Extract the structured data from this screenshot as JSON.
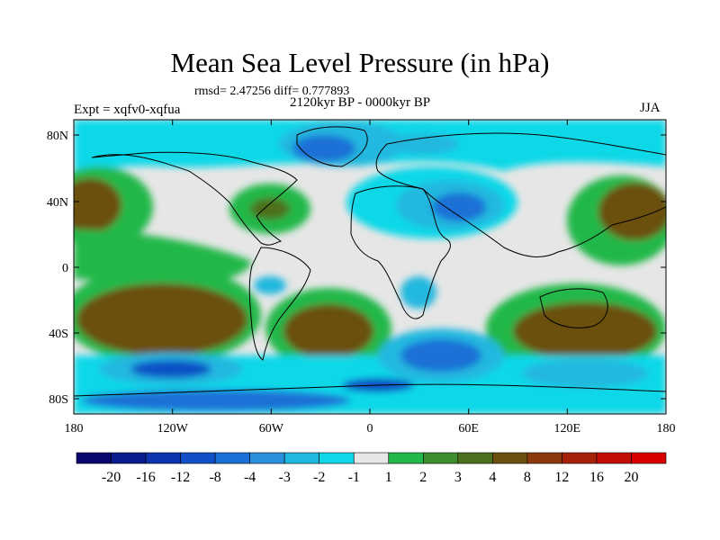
{
  "title": "Mean Sea Level Pressure (in hPa)",
  "stats": "rmsd= 2.47256 diff= 0.777893",
  "subtitle": "2120kyr BP - 0000kyr BP",
  "expt": "Expt = xqfv0-xqfua",
  "season": "JJA",
  "lat_labels": [
    "80N",
    "40N",
    "0",
    "40S",
    "80S"
  ],
  "lon_labels": [
    "180",
    "120W",
    "60W",
    "0",
    "60E",
    "120E",
    "180"
  ],
  "legend": {
    "labels": [
      "-20",
      "-16",
      "-12",
      "-8",
      "-4",
      "-3",
      "-2",
      "-1",
      "1",
      "2",
      "3",
      "4",
      "8",
      "12",
      "16",
      "20"
    ],
    "colors": [
      "#08086e",
      "#0a1d8f",
      "#0d33ad",
      "#1150c6",
      "#1b6fd6",
      "#2b90dd",
      "#21b8df",
      "#11d8e8",
      "#e6e6e6",
      "#22b84a",
      "#3e8e2e",
      "#4e6f1e",
      "#6b5010",
      "#8a3a0c",
      "#a4230a",
      "#c20e06",
      "#d80000"
    ]
  },
  "colors": {
    "land_outline": "#000000",
    "background": "#ffffff",
    "neutral": "#e6e6e6"
  }
}
